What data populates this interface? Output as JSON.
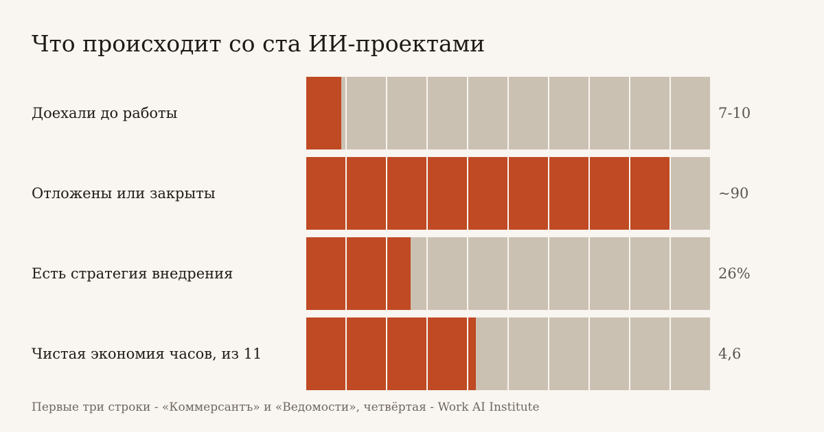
{
  "colors": {
    "background": "#f9f5f0",
    "filled": "#bf4a23",
    "empty": "#cbc1b3",
    "text": "#1f1a17",
    "value_text": "#5b5550",
    "note_text": "#6e6760"
  },
  "chart_data": {
    "type": "bar",
    "title": "Что происходит со ста ИИ-проектами",
    "units_per_bar": 10,
    "rows": [
      {
        "label": "Доехали до работы",
        "value_label": "7-10",
        "fill": 0.9
      },
      {
        "label": "Отложены или закрыты",
        "value_label": "~90",
        "fill": 9
      },
      {
        "label": "Есть стратегия внедрения",
        "value_label": "26%",
        "fill": 2.6
      },
      {
        "label": "Чистая экономия часов, из 11",
        "value_label": "4,6",
        "fill": 4.2
      }
    ],
    "footnote": "Первые три строки - «Коммерсантъ» и «Ведомости», четвёртая - Work AI Institute"
  }
}
